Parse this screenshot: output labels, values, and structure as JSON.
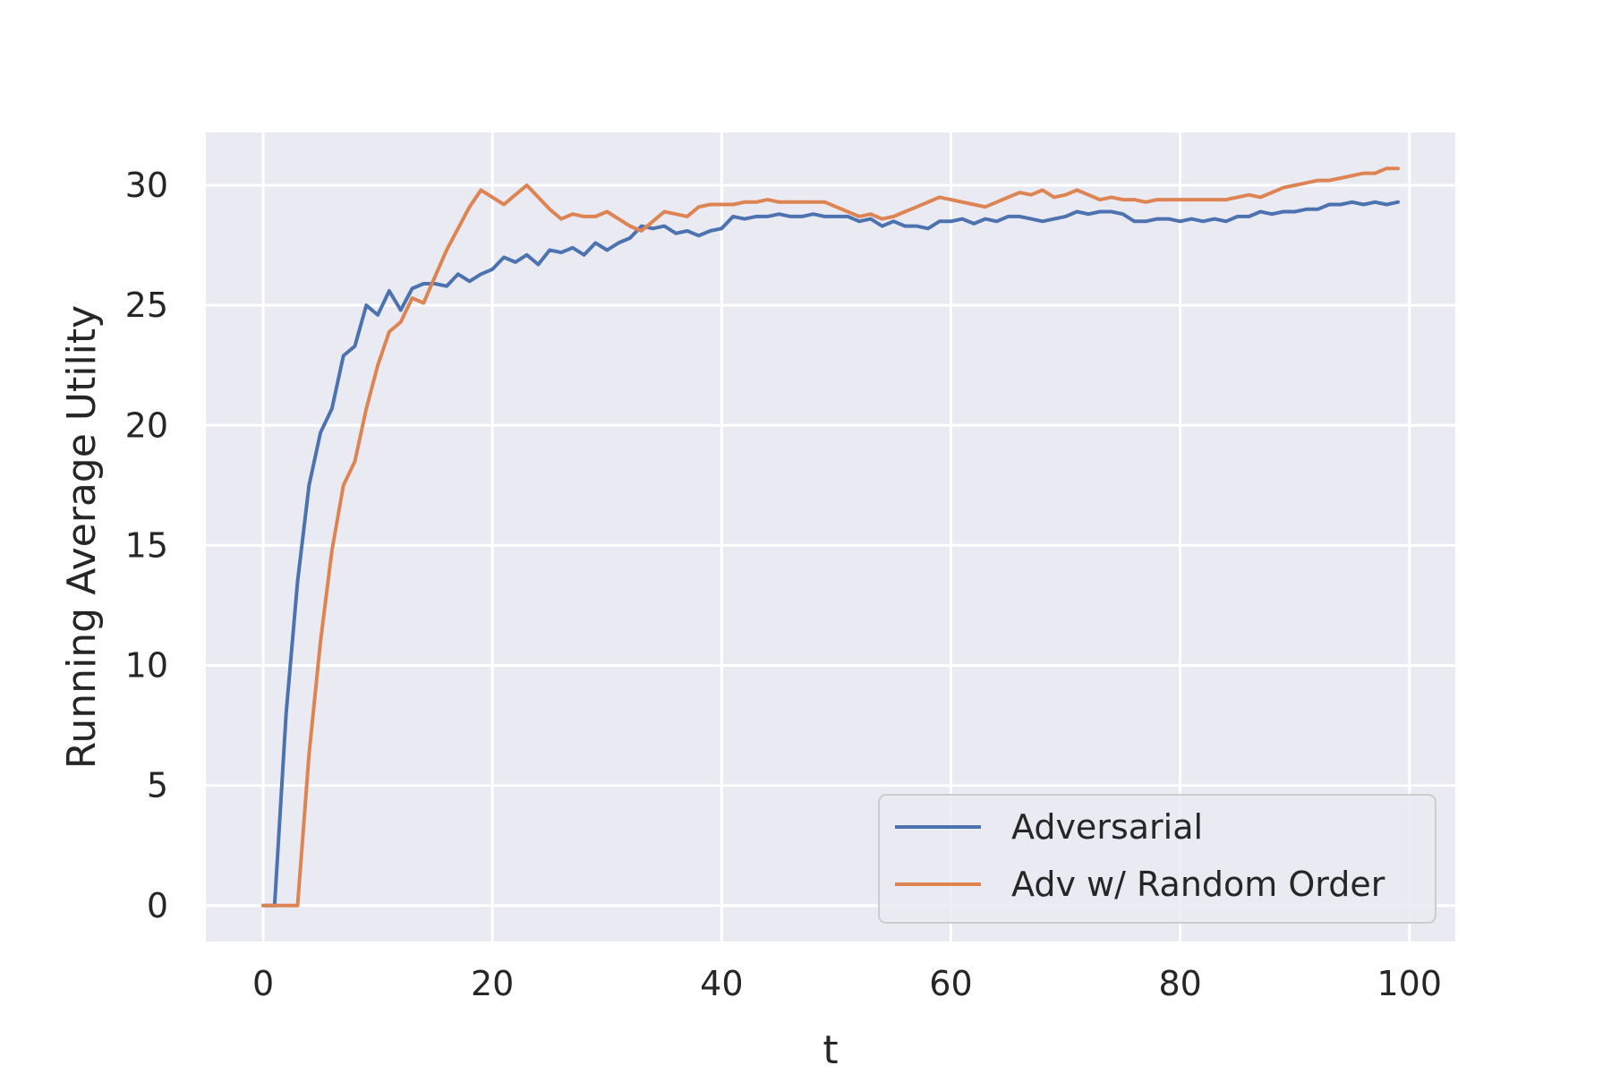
{
  "chart_data": {
    "type": "line",
    "title": "",
    "xlabel": "t",
    "ylabel": "Running Average Utility",
    "xlim": [
      -5,
      104
    ],
    "ylim": [
      -1.5,
      32.2
    ],
    "xticks": [
      "0",
      "20",
      "40",
      "60",
      "80",
      "100"
    ],
    "yticks": [
      "0",
      "5",
      "10",
      "15",
      "20",
      "25",
      "30"
    ],
    "grid": true,
    "legend_position": "lower-right",
    "background_color": "#eaeaf2",
    "grid_color": "#ffffff",
    "series": [
      {
        "name": "Adversarial",
        "color": "#4c72b0",
        "x": [
          0,
          1,
          2,
          3,
          4,
          5,
          6,
          7,
          8,
          9,
          10,
          11,
          12,
          13,
          14,
          15,
          16,
          17,
          18,
          19,
          20,
          21,
          22,
          23,
          24,
          25,
          26,
          27,
          28,
          29,
          30,
          31,
          32,
          33,
          34,
          35,
          36,
          37,
          38,
          39,
          40,
          41,
          42,
          43,
          44,
          45,
          46,
          47,
          48,
          49,
          50,
          51,
          52,
          53,
          54,
          55,
          56,
          57,
          58,
          59,
          60,
          61,
          62,
          63,
          64,
          65,
          66,
          67,
          68,
          69,
          70,
          71,
          72,
          73,
          74,
          75,
          76,
          77,
          78,
          79,
          80,
          81,
          82,
          83,
          84,
          85,
          86,
          87,
          88,
          89,
          90,
          91,
          92,
          93,
          94,
          95,
          96,
          97,
          98,
          99
        ],
        "y": [
          0,
          0,
          8,
          13.5,
          17.5,
          19.7,
          20.7,
          22.9,
          23.3,
          25.0,
          24.6,
          25.6,
          24.8,
          25.7,
          25.9,
          25.9,
          25.8,
          26.3,
          26.0,
          26.3,
          26.5,
          27.0,
          26.8,
          27.1,
          26.7,
          27.3,
          27.2,
          27.4,
          27.1,
          27.6,
          27.3,
          27.6,
          27.8,
          28.3,
          28.2,
          28.3,
          28.0,
          28.1,
          27.9,
          28.1,
          28.2,
          28.7,
          28.6,
          28.7,
          28.7,
          28.8,
          28.7,
          28.7,
          28.8,
          28.7,
          28.7,
          28.7,
          28.5,
          28.6,
          28.3,
          28.5,
          28.3,
          28.3,
          28.2,
          28.5,
          28.5,
          28.6,
          28.4,
          28.6,
          28.5,
          28.7,
          28.7,
          28.6,
          28.5,
          28.6,
          28.7,
          28.9,
          28.8,
          28.9,
          28.9,
          28.8,
          28.5,
          28.5,
          28.6,
          28.6,
          28.5,
          28.6,
          28.5,
          28.6,
          28.5,
          28.7,
          28.7,
          28.9,
          28.8,
          28.9,
          28.9,
          29.0,
          29.0,
          29.2,
          29.2,
          29.3,
          29.2,
          29.3,
          29.2,
          29.3
        ]
      },
      {
        "name": "Adv w/ Random Order",
        "color": "#dd8452",
        "x": [
          0,
          1,
          2,
          3,
          4,
          5,
          6,
          7,
          8,
          9,
          10,
          11,
          12,
          13,
          14,
          15,
          16,
          17,
          18,
          19,
          20,
          21,
          22,
          23,
          24,
          25,
          26,
          27,
          28,
          29,
          30,
          31,
          32,
          33,
          34,
          35,
          36,
          37,
          38,
          39,
          40,
          41,
          42,
          43,
          44,
          45,
          46,
          47,
          48,
          49,
          50,
          51,
          52,
          53,
          54,
          55,
          56,
          57,
          58,
          59,
          60,
          61,
          62,
          63,
          64,
          65,
          66,
          67,
          68,
          69,
          70,
          71,
          72,
          73,
          74,
          75,
          76,
          77,
          78,
          79,
          80,
          81,
          82,
          83,
          84,
          85,
          86,
          87,
          88,
          89,
          90,
          91,
          92,
          93,
          94,
          95,
          96,
          97,
          98,
          99
        ],
        "y": [
          0,
          0,
          0,
          0,
          6.3,
          11,
          14.8,
          17.5,
          18.5,
          20.7,
          22.5,
          23.9,
          24.3,
          25.3,
          25.1,
          26.2,
          27.3,
          28.2,
          29.1,
          29.8,
          29.5,
          29.2,
          29.6,
          30.0,
          29.5,
          29.0,
          28.6,
          28.8,
          28.7,
          28.7,
          28.9,
          28.6,
          28.3,
          28.1,
          28.5,
          28.9,
          28.8,
          28.7,
          29.1,
          29.2,
          29.2,
          29.2,
          29.3,
          29.3,
          29.4,
          29.3,
          29.3,
          29.3,
          29.3,
          29.3,
          29.1,
          28.9,
          28.7,
          28.8,
          28.6,
          28.7,
          28.9,
          29.1,
          29.3,
          29.5,
          29.4,
          29.3,
          29.2,
          29.1,
          29.3,
          29.5,
          29.7,
          29.6,
          29.8,
          29.5,
          29.6,
          29.8,
          29.6,
          29.4,
          29.5,
          29.4,
          29.4,
          29.3,
          29.4,
          29.4,
          29.4,
          29.4,
          29.4,
          29.4,
          29.4,
          29.5,
          29.6,
          29.5,
          29.7,
          29.9,
          30.0,
          30.1,
          30.2,
          30.2,
          30.3,
          30.4,
          30.5,
          30.5,
          30.7,
          30.7
        ]
      }
    ]
  }
}
